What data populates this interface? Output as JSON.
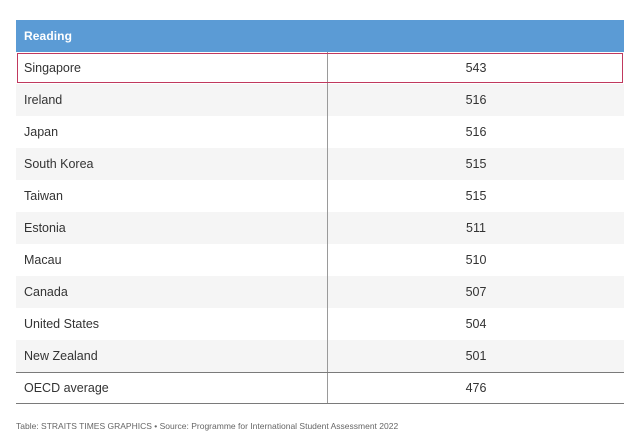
{
  "table": {
    "header": "Reading",
    "rows": [
      {
        "country": "Singapore",
        "score": "543"
      },
      {
        "country": "Ireland",
        "score": "516"
      },
      {
        "country": "Japan",
        "score": "516"
      },
      {
        "country": "South Korea",
        "score": "515"
      },
      {
        "country": "Taiwan",
        "score": "515"
      },
      {
        "country": "Estonia",
        "score": "511"
      },
      {
        "country": "Macau",
        "score": "510"
      },
      {
        "country": "Canada",
        "score": "507"
      },
      {
        "country": "United States",
        "score": "504"
      },
      {
        "country": "New Zealand",
        "score": "501"
      },
      {
        "country": "OECD average",
        "score": "476"
      }
    ]
  },
  "footer": "Table: STRAITS TIMES GRAPHICS • Source: Programme for International Student Assessment 2022",
  "colors": {
    "header_bg": "#5b9bd5",
    "highlight_border": "#c0395e"
  },
  "chart_data": {
    "type": "table",
    "columns": [
      "Reading",
      ""
    ],
    "categories": [
      "Singapore",
      "Ireland",
      "Japan",
      "South Korea",
      "Taiwan",
      "Estonia",
      "Macau",
      "Canada",
      "United States",
      "New Zealand",
      "OECD average"
    ],
    "values": [
      543,
      516,
      516,
      515,
      515,
      511,
      510,
      507,
      504,
      501,
      476
    ]
  }
}
